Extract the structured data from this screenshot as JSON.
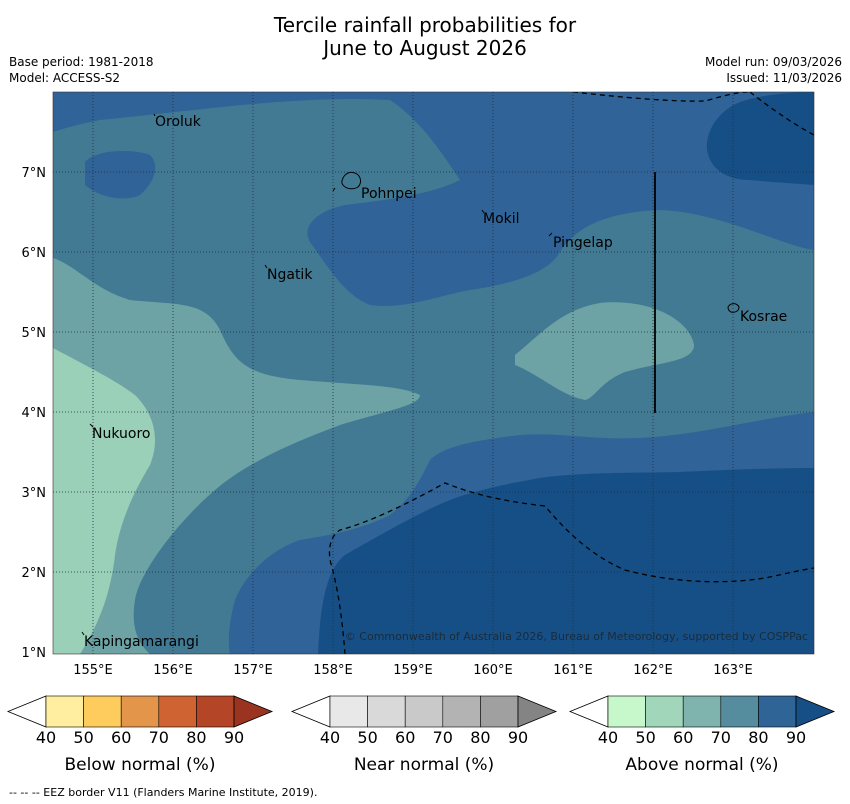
{
  "title": {
    "line1": "Tercile rainfall probabilities for",
    "line2": "June to August 2026"
  },
  "meta": {
    "base_period": "Base period: 1981-2018",
    "model": "Model: ACCESS-S2",
    "model_run": "Model run: 09/03/2026",
    "issued": "Issued: 11/03/2026"
  },
  "map": {
    "lon_labels": [
      "155°E",
      "156°E",
      "157°E",
      "158°E",
      "159°E",
      "160°E",
      "161°E",
      "162°E",
      "163°E"
    ],
    "lat_labels": [
      "7°N",
      "6°N",
      "5°N",
      "4°N",
      "3°N",
      "2°N",
      "1°N"
    ],
    "places": [
      "Oroluk",
      "Pohnpei",
      "Mokil",
      "Pingelap",
      "Ngatik",
      "Kosrae",
      "Nukuoro",
      "Kapingamarangi"
    ],
    "copyright": "© Commonwealth of Australia 2026, Bureau of Meteorology, supported by COSPPac"
  },
  "legend": {
    "ticks": [
      "40",
      "50",
      "60",
      "70",
      "80",
      "90"
    ],
    "below": {
      "label": "Below normal (%)",
      "colors": [
        "#ffeda0",
        "#fecc5c",
        "#e3954a",
        "#cf6331",
        "#b44526",
        "#9a3421"
      ]
    },
    "near": {
      "label": "Near normal (%)",
      "colors": [
        "#e8e8e8",
        "#d9d9d9",
        "#c9c9c9",
        "#b3b3b3",
        "#a0a0a0",
        "#848484"
      ]
    },
    "above": {
      "label": "Above normal (%)",
      "colors": [
        "#c7f8cb",
        "#a1d6bb",
        "#7fb3ad",
        "#558d9f",
        "#2f6496",
        "#164f86"
      ]
    }
  },
  "footnote": "--  --  -- EEZ border V11 (Flanders Marine Institute, 2019)."
}
